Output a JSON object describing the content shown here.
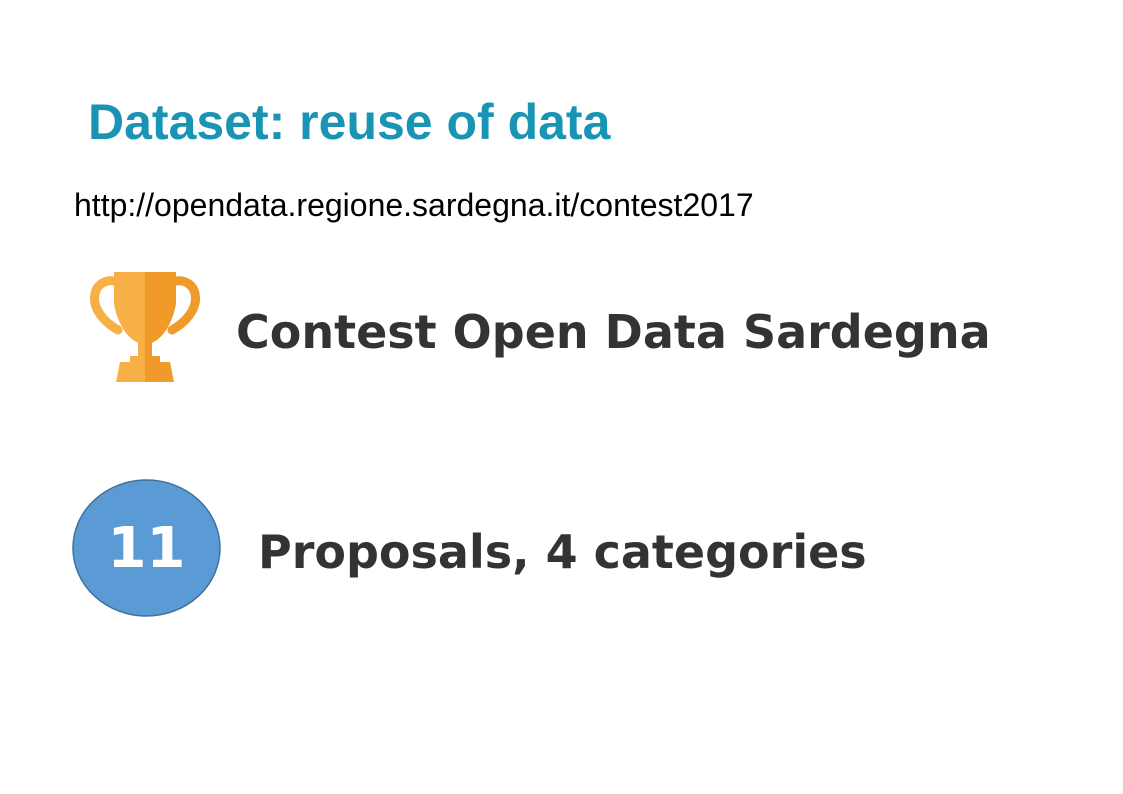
{
  "slide": {
    "title": "Dataset: reuse of data",
    "url": "http://opendata.regione.sardegna.it/contest2017",
    "contest": {
      "icon": "trophy-icon",
      "label": "Contest Open Data Sardegna"
    },
    "proposals": {
      "count": "11",
      "label": "Proposals, 4 categories"
    }
  },
  "colors": {
    "title": "#1a94b4",
    "text": "#333333",
    "trophy_light": "#f7b045",
    "trophy_dark": "#f09a2a",
    "badge_fill": "#5b9bd5",
    "badge_stroke": "#41719c"
  }
}
